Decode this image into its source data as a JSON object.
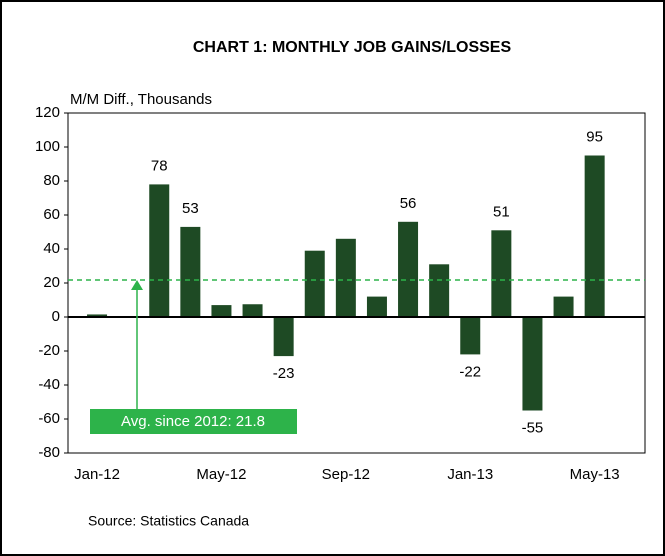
{
  "chart_data": {
    "type": "bar",
    "title": "CHART 1: MONTHLY JOB GAINS/LOSSES",
    "y_label": "M/M Diff., Thousands",
    "source": "Source: Statistics Canada",
    "categories": [
      "Jan-12",
      null,
      null,
      null,
      "May-12",
      null,
      null,
      null,
      "Sep-12",
      null,
      null,
      null,
      "Jan-13",
      null,
      null,
      null,
      "May-13",
      null
    ],
    "values": [
      1.5,
      null,
      78,
      53,
      7,
      7.5,
      -23,
      39,
      46,
      12,
      56,
      31,
      -22,
      51,
      -55,
      12,
      95,
      0
    ],
    "value_labels": [
      null,
      null,
      "78",
      "53",
      null,
      null,
      "-23",
      null,
      null,
      null,
      "56",
      null,
      "-22",
      "51",
      "-55",
      null,
      "95",
      null
    ],
    "color": "#1e4a24",
    "ylim": [
      -80,
      120
    ],
    "yticks": [
      -80,
      -60,
      -40,
      -20,
      0,
      20,
      40,
      60,
      80,
      100,
      120
    ],
    "average": {
      "value": 21.8,
      "label": "Avg. since 2012: 21.8",
      "color": "#2db34a"
    }
  }
}
